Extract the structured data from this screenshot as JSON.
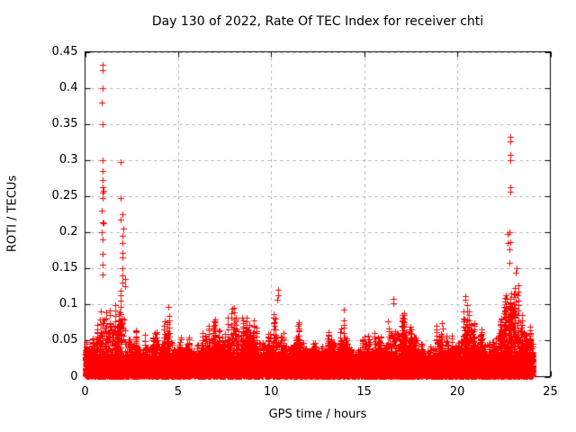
{
  "figure": {
    "background": "#ffffff"
  },
  "chart_data": {
    "type": "scatter",
    "title": "Day 130 of 2022, Rate Of TEC Index for receiver chti",
    "xlabel": "GPS time / hours",
    "ylabel": "ROTI / TECUs",
    "xlim": [
      0,
      25
    ],
    "ylim": [
      0,
      0.45
    ],
    "xticks": [
      0,
      5,
      10,
      15,
      20,
      25
    ],
    "xtick_labels": [
      "0",
      "5",
      "10",
      "15",
      "20",
      "25"
    ],
    "yticks": [
      0,
      0.05,
      0.1,
      0.15,
      0.2,
      0.25,
      0.3,
      0.35,
      0.4,
      0.45
    ],
    "ytick_labels": [
      "0",
      "0.05",
      "0.1",
      "0.15",
      "0.2",
      "0.25",
      "0.3",
      "0.35",
      "0.4",
      "0.45"
    ],
    "grid": true,
    "legend": "none",
    "marker": "plus",
    "marker_color": "#ff0000",
    "grid_color": "#aaaaaa",
    "axis_color": "#000000",
    "data_time_range": [
      0.0,
      24.07
    ],
    "baseline_band": {
      "v_min": 0.0,
      "v_max": 0.03,
      "description": "dense solid band of + markers along the bottom for all 24 hours"
    },
    "envelope": [
      [
        0,
        0.06
      ],
      [
        0.25,
        0.075
      ],
      [
        0.5,
        0.065
      ],
      [
        0.75,
        0.09
      ],
      [
        1,
        0.13
      ],
      [
        1.25,
        0.12
      ],
      [
        1.5,
        0.12
      ],
      [
        1.75,
        0.11
      ],
      [
        2,
        0.15
      ],
      [
        2.25,
        0.09
      ],
      [
        2.5,
        0.085
      ],
      [
        2.75,
        0.07
      ],
      [
        3,
        0.06
      ],
      [
        3.25,
        0.065
      ],
      [
        3.5,
        0.06
      ],
      [
        3.75,
        0.1
      ],
      [
        4,
        0.07
      ],
      [
        4.25,
        0.08
      ],
      [
        4.5,
        0.105
      ],
      [
        4.75,
        0.065
      ],
      [
        5,
        0.055
      ],
      [
        5.25,
        0.06
      ],
      [
        5.5,
        0.075
      ],
      [
        5.75,
        0.06
      ],
      [
        6,
        0.05
      ],
      [
        6.25,
        0.06
      ],
      [
        6.5,
        0.07
      ],
      [
        6.75,
        0.08
      ],
      [
        7,
        0.085
      ],
      [
        7.25,
        0.07
      ],
      [
        7.5,
        0.078
      ],
      [
        7.75,
        0.085
      ],
      [
        8,
        0.11
      ],
      [
        8.25,
        0.088
      ],
      [
        8.5,
        0.102
      ],
      [
        8.75,
        0.09
      ],
      [
        9,
        0.09
      ],
      [
        9.25,
        0.078
      ],
      [
        9.5,
        0.08
      ],
      [
        9.75,
        0.072
      ],
      [
        10,
        0.065
      ],
      [
        10.25,
        0.11
      ],
      [
        10.5,
        0.07
      ],
      [
        10.75,
        0.072
      ],
      [
        11,
        0.065
      ],
      [
        11.25,
        0.07
      ],
      [
        11.5,
        0.082
      ],
      [
        11.75,
        0.075
      ],
      [
        12,
        0.06
      ],
      [
        12.25,
        0.055
      ],
      [
        12.5,
        0.06
      ],
      [
        12.75,
        0.06
      ],
      [
        13,
        0.067
      ],
      [
        13.25,
        0.06
      ],
      [
        13.5,
        0.065
      ],
      [
        13.75,
        0.08
      ],
      [
        14,
        0.1
      ],
      [
        14.25,
        0.06
      ],
      [
        14.5,
        0.058
      ],
      [
        14.75,
        0.06
      ],
      [
        15,
        0.065
      ],
      [
        15.25,
        0.088
      ],
      [
        15.5,
        0.06
      ],
      [
        15.75,
        0.062
      ],
      [
        16,
        0.06
      ],
      [
        16.25,
        0.08
      ],
      [
        16.5,
        0.108
      ],
      [
        16.75,
        0.1
      ],
      [
        17,
        0.09
      ],
      [
        17.25,
        0.1
      ],
      [
        17.5,
        0.07
      ],
      [
        17.75,
        0.058
      ],
      [
        18,
        0.055
      ],
      [
        18.25,
        0.06
      ],
      [
        18.5,
        0.065
      ],
      [
        18.75,
        0.08
      ],
      [
        19,
        0.085
      ],
      [
        19.25,
        0.07
      ],
      [
        19.5,
        0.065
      ],
      [
        19.75,
        0.06
      ],
      [
        20,
        0.07
      ],
      [
        20.25,
        0.085
      ],
      [
        20.5,
        0.112
      ],
      [
        20.75,
        0.095
      ],
      [
        21,
        0.068
      ],
      [
        21.25,
        0.065
      ],
      [
        21.5,
        0.072
      ],
      [
        21.75,
        0.075
      ],
      [
        22,
        0.085
      ],
      [
        22.25,
        0.1
      ],
      [
        22.5,
        0.12
      ],
      [
        22.75,
        0.14
      ],
      [
        23,
        0.16
      ],
      [
        23.25,
        0.14
      ],
      [
        23.5,
        0.11
      ],
      [
        23.75,
        0.085
      ],
      [
        24,
        0.055
      ]
    ],
    "spikes": [
      {
        "t": 0.92,
        "values": [
          0.432,
          0.425,
          0.4,
          0.38,
          0.35,
          0.3,
          0.285,
          0.272,
          0.262,
          0.255,
          0.247,
          0.23,
          0.214,
          0.2,
          0.19,
          0.17,
          0.155,
          0.142
        ]
      },
      {
        "t": 1.0,
        "values": [
          0.258,
          0.212
        ]
      },
      {
        "t": 1.9,
        "values": [
          0.297,
          0.247,
          0.218
        ]
      },
      {
        "t": 2.02,
        "values": [
          0.225,
          0.205,
          0.195,
          0.185,
          0.172,
          0.165,
          0.15,
          0.14,
          0.13
        ]
      },
      {
        "t": 2.15,
        "values": [
          0.135,
          0.125
        ]
      },
      {
        "t": 10.35,
        "values": [
          0.12,
          0.113,
          0.107
        ]
      },
      {
        "t": 13.9,
        "values": [
          0.093
        ]
      },
      {
        "t": 16.55,
        "values": [
          0.108,
          0.102
        ]
      },
      {
        "t": 20.45,
        "values": [
          0.112,
          0.106
        ]
      },
      {
        "t": 22.7,
        "values": [
          0.198,
          0.185
        ]
      },
      {
        "t": 22.83,
        "values": [
          0.332,
          0.326,
          0.307,
          0.3,
          0.263,
          0.256,
          0.2,
          0.186,
          0.176,
          0.158
        ]
      },
      {
        "t": 23.15,
        "values": [
          0.15,
          0.144
        ]
      }
    ]
  }
}
